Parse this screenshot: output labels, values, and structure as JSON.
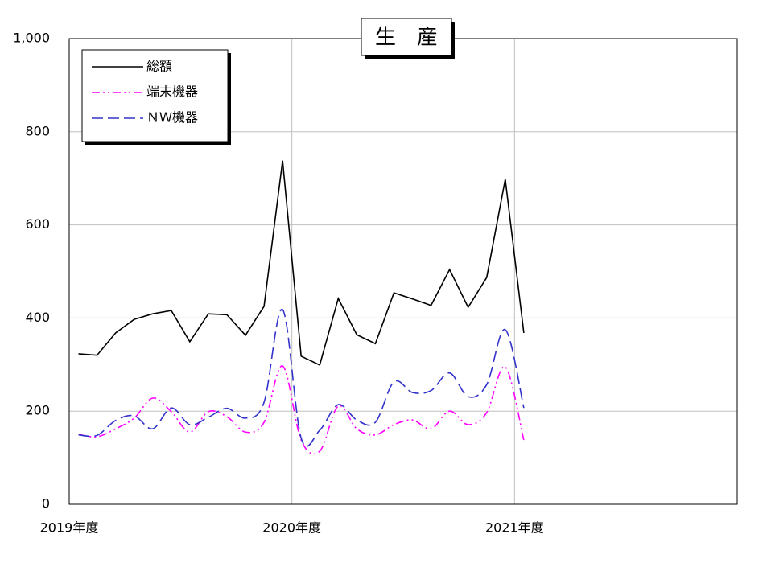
{
  "chart_data": {
    "type": "line",
    "title": "生　産",
    "x": [
      0.5,
      1.5,
      2.5,
      3.5,
      4.5,
      5.5,
      6.5,
      7.5,
      8.5,
      9.5,
      10.5,
      11.5,
      12.5,
      13.5,
      14.5,
      15.5,
      16.5,
      17.5,
      18.5,
      19.5,
      20.5,
      21.5,
      22.5,
      23.5,
      24.5
    ],
    "xlim": [
      0,
      36
    ],
    "xticks": [
      {
        "value": 0,
        "label": "2019年度"
      },
      {
        "value": 12,
        "label": "2020年度"
      },
      {
        "value": 24,
        "label": "2021年度"
      }
    ],
    "ylim": [
      0,
      1000
    ],
    "yticks": [
      0,
      200,
      400,
      600,
      800,
      {
        "value": 1000,
        "label": "1,000"
      }
    ],
    "grid": true,
    "legend": "upper left",
    "series": [
      {
        "name": "総額",
        "color": "#000000",
        "linestyle": "solid",
        "smooth": false,
        "values": [
          323,
          320,
          368,
          397,
          409,
          416,
          349,
          409,
          407,
          363,
          425,
          738,
          318,
          299,
          442,
          364,
          345,
          454,
          441,
          427,
          504,
          423,
          487,
          698,
          368
        ]
      },
      {
        "name": "端末機器",
        "color": "#ff00ff",
        "linestyle": "dashdotdot",
        "smooth": true,
        "values": [
          150,
          145,
          162,
          185,
          228,
          199,
          155,
          199,
          188,
          155,
          176,
          297,
          138,
          114,
          211,
          162,
          149,
          171,
          181,
          162,
          200,
          171,
          197,
          295,
          138
        ]
      },
      {
        "name": "ＮＷ機器",
        "color": "#3333cc",
        "linestyle": "dashed",
        "smooth": true,
        "values": [
          149,
          148,
          180,
          190,
          162,
          207,
          171,
          187,
          206,
          185,
          219,
          418,
          142,
          159,
          214,
          181,
          176,
          263,
          240,
          244,
          282,
          231,
          257,
          375,
          207
        ]
      }
    ]
  }
}
